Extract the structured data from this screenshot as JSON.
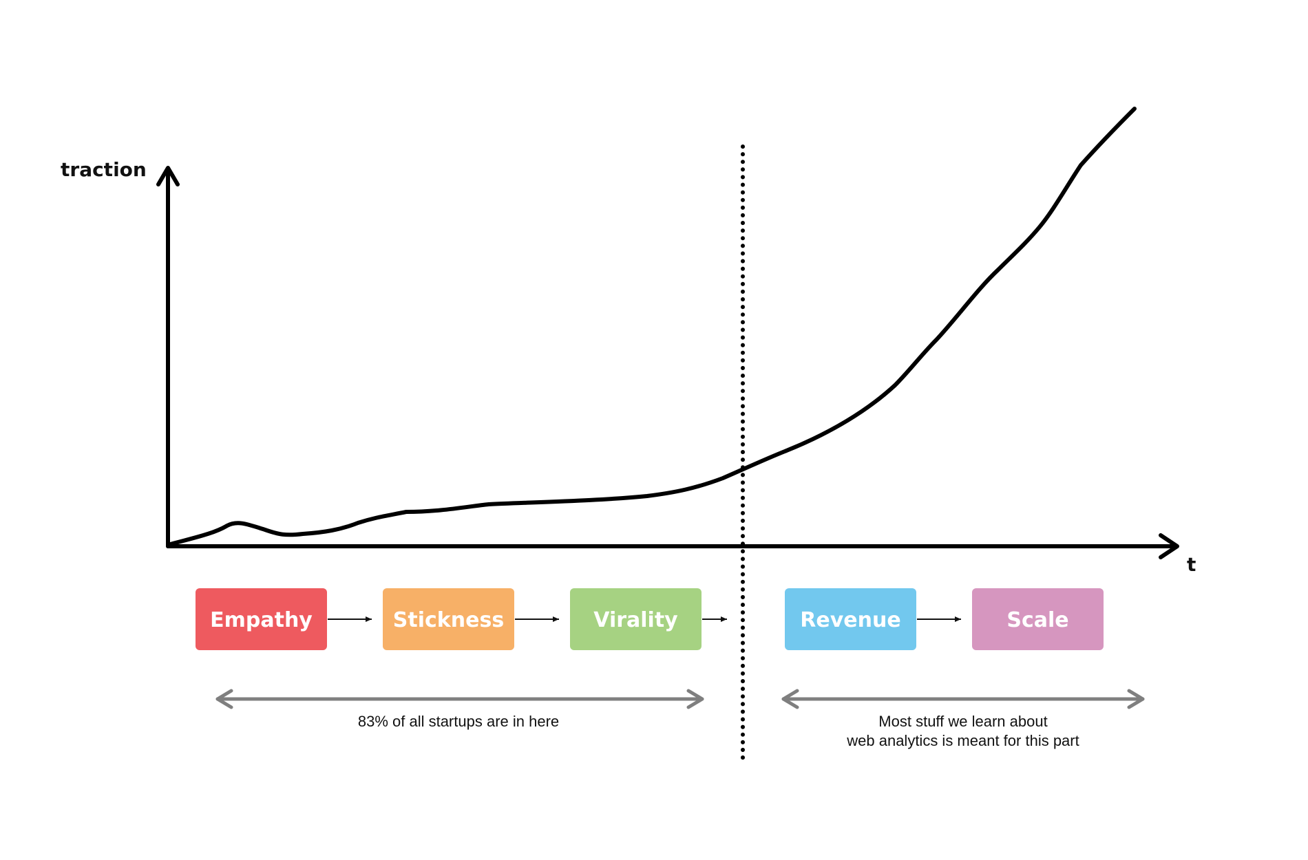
{
  "axes": {
    "y_label": "traction",
    "x_label": "t"
  },
  "colors": {
    "empathy": "#ee5a5f",
    "stickness": "#f7b067",
    "virality": "#a6d282",
    "revenue": "#72c8ee",
    "scale": "#d696bf",
    "range_arrow": "#7f7f7f"
  },
  "stages": [
    {
      "label": "Empathy",
      "color": "#ee5a5f"
    },
    {
      "label": "Stickness",
      "color": "#f7b067"
    },
    {
      "label": "Virality",
      "color": "#a6d282"
    },
    {
      "label": "Revenue",
      "color": "#72c8ee"
    },
    {
      "label": "Scale",
      "color": "#d696bf"
    }
  ],
  "notes": {
    "left": "83% of all startups are in here",
    "right_line1": "Most stuff we learn about",
    "right_line2": "web analytics is meant for this part"
  }
}
